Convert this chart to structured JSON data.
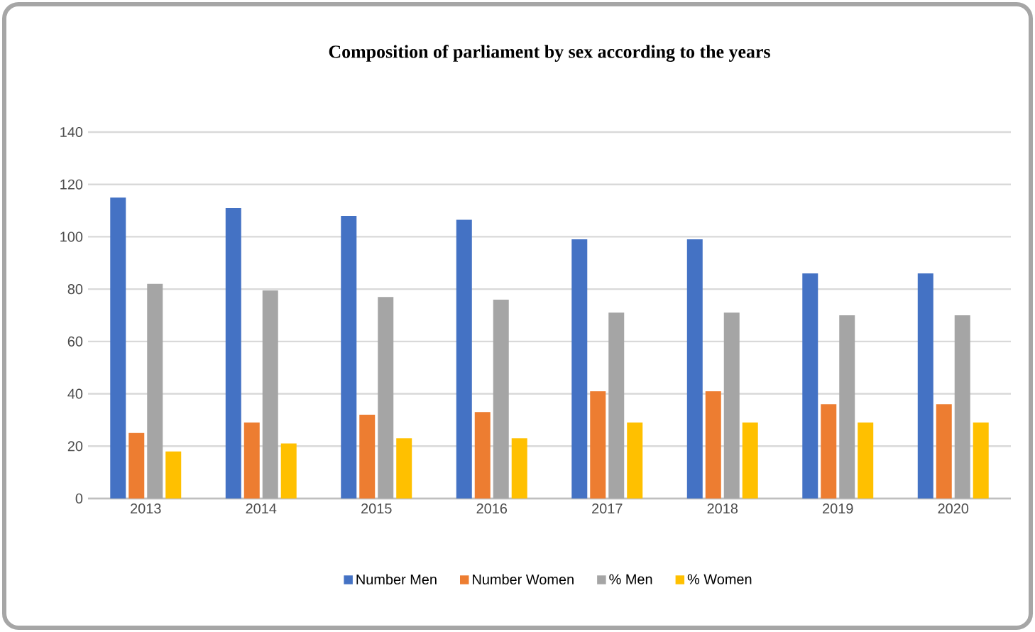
{
  "chart_data": {
    "type": "bar",
    "title": "Composition of parliament by sex according to the years",
    "categories": [
      "2013",
      "2014",
      "2015",
      "2016",
      "2017",
      "2018",
      "2019",
      "2020"
    ],
    "series": [
      {
        "name": "Number Men",
        "color": "#4472c4",
        "values": [
          115,
          111,
          108,
          106.5,
          99,
          99,
          86,
          86
        ]
      },
      {
        "name": "Number Women",
        "color": "#ed7d31",
        "values": [
          25,
          29,
          32,
          33,
          41,
          41,
          36,
          36
        ]
      },
      {
        "name": "% Men",
        "color": "#a5a5a5",
        "values": [
          82,
          79.5,
          77,
          76,
          71,
          71,
          70,
          70
        ]
      },
      {
        "name": "% Women",
        "color": "#ffc000",
        "values": [
          18,
          21,
          23,
          23,
          29,
          29,
          29,
          29
        ]
      }
    ],
    "ylim": [
      0,
      140
    ],
    "yticks": [
      0,
      20,
      40,
      60,
      80,
      100,
      120,
      140
    ],
    "grid": "y",
    "legend": "bottom"
  }
}
